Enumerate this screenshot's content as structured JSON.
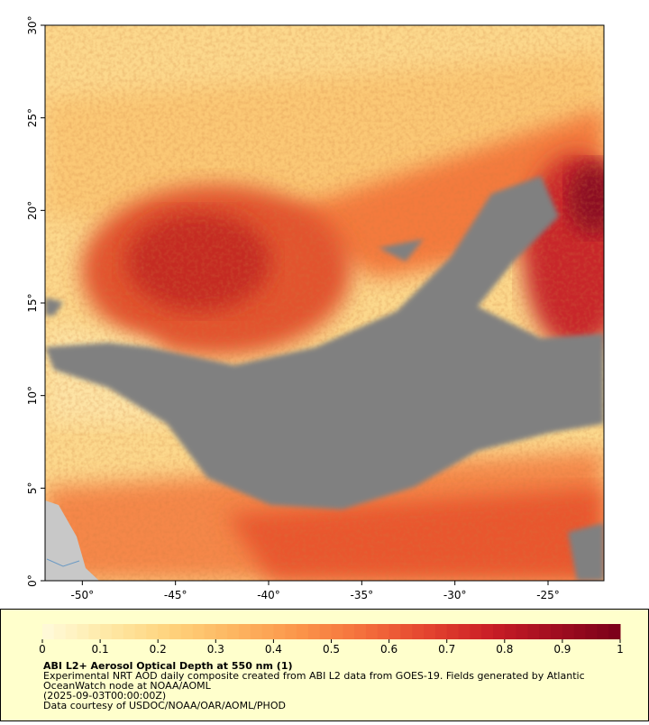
{
  "map": {
    "xlim": [
      -52,
      -22
    ],
    "ylim": [
      0,
      30
    ],
    "xticks": [
      {
        "value": -50,
        "label": "-50°"
      },
      {
        "value": -45,
        "label": "-45°"
      },
      {
        "value": -40,
        "label": "-40°"
      },
      {
        "value": -35,
        "label": "-35°"
      },
      {
        "value": -30,
        "label": "-30°"
      },
      {
        "value": -25,
        "label": "-25°"
      }
    ],
    "yticks": [
      {
        "value": 0,
        "label": "0°"
      },
      {
        "value": 5,
        "label": "5°"
      },
      {
        "value": 10,
        "label": "10°"
      },
      {
        "value": 15,
        "label": "15°"
      },
      {
        "value": 20,
        "label": "20°"
      },
      {
        "value": 25,
        "label": "25°"
      },
      {
        "value": 30,
        "label": "30°"
      }
    ]
  },
  "colorbar": {
    "lim": [
      0,
      1
    ],
    "ticks": [
      0,
      0.1,
      0.2,
      0.3,
      0.4,
      0.5,
      0.6,
      0.7,
      0.8,
      0.9,
      1
    ],
    "colors": [
      "#fffbdc",
      "#fee9a6",
      "#fed27c",
      "#fdb560",
      "#fb954a",
      "#f46f3c",
      "#e4442f",
      "#c91d26",
      "#a00d20",
      "#7a0019"
    ]
  },
  "caption": {
    "title": "ABI L2+ Aerosol Optical Depth at 550 nm (1)",
    "lines": [
      "Experimental NRT AOD daily composite created from ABI L2 data from GOES-19. Fields generated by Atlantic",
      "OceanWatch node at NOAA/AOML",
      "(2025-09-03T00:00:00Z)",
      "Data courtesy of USDOC/NOAA/OAR/AOML/PHOD"
    ]
  }
}
